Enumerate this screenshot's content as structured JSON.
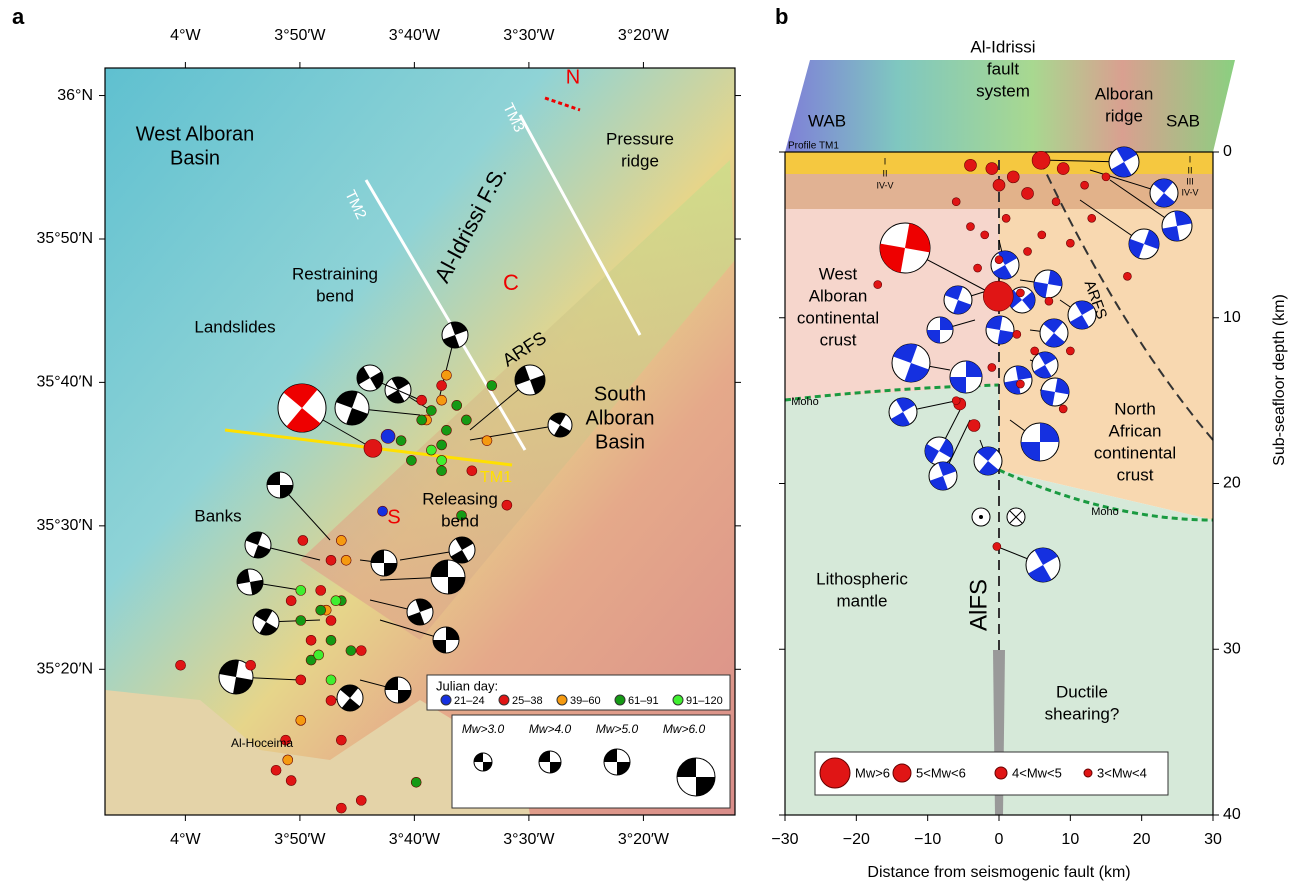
{
  "chart_data": [
    {
      "type": "map",
      "panel": "a",
      "xlim": [
        -4.117,
        -3.2
      ],
      "ylim": [
        35.164,
        36.032
      ],
      "xticks": [
        {
          "value": -4,
          "label": "4°W"
        },
        {
          "value": -3.8333,
          "label": "3°50′W"
        },
        {
          "value": -3.6667,
          "label": "3°40′W"
        },
        {
          "value": -3.5,
          "label": "3°30′W"
        },
        {
          "value": -3.3333,
          "label": "3°20′W"
        }
      ],
      "yticks": [
        {
          "value": 36,
          "label": "36°N"
        },
        {
          "value": 35.8333,
          "label": "35°50′N"
        },
        {
          "value": 35.6667,
          "label": "35°40′N"
        },
        {
          "value": 35.5,
          "label": "35°30′N"
        },
        {
          "value": 35.3333,
          "label": "35°20′N"
        }
      ],
      "legend_title": "Julian day:",
      "series": [
        {
          "name": "21–24",
          "color": "#1530e0",
          "x": [
            -3.705,
            -3.713
          ],
          "values": [
            35.604,
            35.517
          ]
        },
        {
          "name": "25–38",
          "color": "#e01515",
          "x": [
            -3.727,
            -3.829,
            -3.788,
            -3.846,
            -3.817,
            -3.832,
            -3.788,
            -3.854,
            -3.773,
            -3.905,
            -3.744,
            -3.846,
            -3.627,
            -3.532,
            -3.583,
            -3.788,
            -3.744,
            -3.773,
            -3.656,
            -3.868,
            -3.803,
            -4.007
          ],
          "values": [
            35.59,
            35.483,
            35.46,
            35.413,
            35.367,
            35.321,
            35.297,
            35.251,
            35.251,
            35.338,
            35.181,
            35.204,
            35.663,
            35.524,
            35.564,
            35.39,
            35.355,
            35.172,
            35.646,
            35.216,
            35.425,
            35.338
          ]
        },
        {
          "name": "39–60",
          "color": "#f59a10",
          "x": [
            -3.627,
            -3.62,
            -3.561,
            -3.773,
            -3.795,
            -3.832,
            -3.851,
            -3.766,
            -3.649
          ],
          "values": [
            35.646,
            35.675,
            35.599,
            35.483,
            35.402,
            35.274,
            35.228,
            35.46,
            35.623
          ]
        },
        {
          "name": "61–91",
          "color": "#159a15",
          "x": [
            -3.656,
            -3.642,
            -3.62,
            -3.605,
            -3.591,
            -3.686,
            -3.671,
            -3.627,
            -3.554,
            -3.773,
            -3.803,
            -3.832,
            -3.788,
            -3.817,
            -3.759,
            -3.664,
            -3.627,
            -3.598
          ],
          "values": [
            35.623,
            35.634,
            35.611,
            35.64,
            35.623,
            35.599,
            35.576,
            35.594,
            35.663,
            35.413,
            35.402,
            35.39,
            35.367,
            35.344,
            35.355,
            35.202,
            35.564,
            35.512
          ]
        },
        {
          "name": "91–120",
          "color": "#40ef30",
          "x": [
            -3.642,
            -3.806,
            -3.781,
            -3.832,
            -3.627,
            -3.788
          ],
          "values": [
            35.588,
            35.35,
            35.413,
            35.425,
            35.576,
            35.321
          ]
        }
      ],
      "size_legend": [
        "Mw>3.0",
        "Mw>4.0",
        "Mw>5.0",
        "Mw>6.0"
      ],
      "annotations": [
        {
          "lines": [
            "West Alboran",
            "Basin"
          ]
        },
        {
          "lines": [
            "Al-Idrissi F.S."
          ]
        },
        {
          "lines": [
            "Pressure",
            "ridge"
          ]
        },
        {
          "lines": [
            "Restraining",
            "bend"
          ]
        },
        {
          "lines": [
            "Landslides"
          ]
        },
        {
          "lines": [
            "ARFS"
          ]
        },
        {
          "lines": [
            "South",
            "Alboran",
            "Basin"
          ]
        },
        {
          "lines": [
            "Releasing",
            "bend"
          ]
        },
        {
          "lines": [
            "Banks"
          ]
        },
        {
          "lines": [
            "Al-Hoceima"
          ]
        },
        {
          "lines": [
            "C"
          ]
        },
        {
          "lines": [
            "N"
          ]
        },
        {
          "lines": [
            "S"
          ]
        },
        {
          "lines": [
            "TM1"
          ]
        },
        {
          "lines": [
            "TM2"
          ]
        },
        {
          "lines": [
            "TM3"
          ]
        }
      ]
    },
    {
      "type": "scatter",
      "panel": "b",
      "xlim": [
        -30,
        30
      ],
      "ylim": [
        40,
        0
      ],
      "xticks": [
        {
          "value": -30,
          "label": "−30"
        },
        {
          "value": -20,
          "label": "−20"
        },
        {
          "value": -10,
          "label": "−10"
        },
        0,
        10,
        20,
        30
      ],
      "yticks": [
        0,
        10,
        20,
        30,
        40
      ],
      "xlabel": "Distance from seismogenic fault (km)",
      "ylabel": "Sub-seafloor depth (km)",
      "series": [
        {
          "name": "Mw>6",
          "color": "#e01515",
          "x": [
            -0.1
          ],
          "values": [
            8.7
          ]
        },
        {
          "name": "5<Mw<6",
          "color": "#e01515",
          "x": [
            5.9
          ],
          "values": [
            0.5
          ]
        },
        {
          "name": "4<Mw<5",
          "color": "#e01515",
          "x": [
            -5.5,
            -3.5,
            -1,
            2,
            9,
            4,
            -4,
            0
          ],
          "values": [
            15.2,
            16.5,
            1,
            1.5,
            1,
            2.5,
            0.8,
            2
          ]
        },
        {
          "name": "3<Mw<4",
          "color": "#e01515",
          "x": [
            -17,
            -0.3,
            3,
            -6,
            9,
            2.5,
            4,
            6,
            -2,
            -4,
            1,
            8,
            12,
            15,
            10,
            -6,
            -3,
            3,
            7,
            5,
            -1,
            10,
            18,
            13,
            0
          ],
          "values": [
            8,
            23.8,
            14,
            15,
            15.5,
            11,
            6,
            5,
            5,
            4.5,
            4,
            3,
            2,
            1.5,
            5.5,
            3,
            7,
            8.5,
            9,
            12,
            13,
            12,
            7.5,
            4,
            6.5
          ]
        }
      ],
      "annotations": [
        {
          "lines": [
            "WAB"
          ]
        },
        {
          "lines": [
            "Al-Idrissi",
            "fault",
            "system"
          ]
        },
        {
          "lines": [
            "Alboran",
            "ridge"
          ]
        },
        {
          "lines": [
            "SAB"
          ]
        },
        {
          "lines": [
            "Profile TM1"
          ]
        },
        {
          "lines": [
            "West",
            "Alboran",
            "continental",
            "crust"
          ]
        },
        {
          "lines": [
            "North",
            "African",
            "continental",
            "crust"
          ]
        },
        {
          "lines": [
            "Moho"
          ]
        },
        {
          "lines": [
            "Moho"
          ]
        },
        {
          "lines": [
            "ARFS"
          ]
        },
        {
          "lines": [
            "Lithospheric",
            "mantle"
          ]
        },
        {
          "lines": [
            "AlFS"
          ]
        },
        {
          "lines": [
            "Ductile",
            "shearing?"
          ]
        },
        {
          "lines": [
            "I",
            "II",
            "IV-V"
          ]
        },
        {
          "lines": [
            "I",
            "II",
            "III",
            "IV-V"
          ]
        }
      ]
    }
  ]
}
